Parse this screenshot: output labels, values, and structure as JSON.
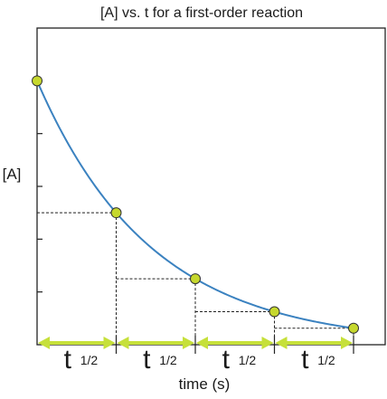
{
  "chart_data": {
    "type": "line",
    "title": "[A] vs. t for a first-order reaction",
    "xlabel": "time (s)",
    "ylabel": "[A]",
    "grid": false,
    "x": [
      0,
      1,
      2,
      3,
      4
    ],
    "y": [
      1.0,
      0.5,
      0.25,
      0.125,
      0.0625
    ],
    "xlim": [
      0,
      4.4
    ],
    "ylim": [
      0,
      1.2
    ],
    "marker_color": "#c6d82e",
    "marker_edge_color": "#333333",
    "line_color": "#3b82c0",
    "arrow_color": "#c6e03a",
    "half_life_labels": [
      {
        "main": "t",
        "sub": "1/2"
      },
      {
        "main": "t",
        "sub": "1/2"
      },
      {
        "main": "t",
        "sub": "1/2"
      },
      {
        "main": "t",
        "sub": "1/2"
      }
    ]
  }
}
